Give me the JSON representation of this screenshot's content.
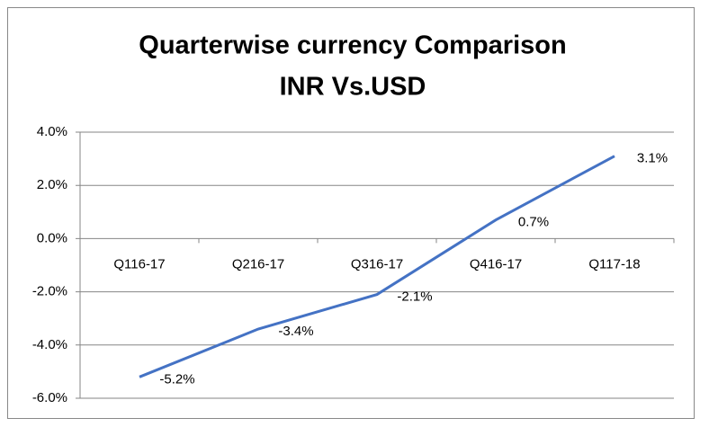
{
  "chart_data": {
    "type": "line",
    "title": [
      "Quarterwise currency Comparison",
      "INR Vs.USD"
    ],
    "categories": [
      "Q116-17",
      "Q216-17",
      "Q316-17",
      "Q416-17",
      "Q117-18"
    ],
    "series": [
      {
        "color": "#4472c4",
        "values": [
          -5.2,
          -3.4,
          -2.1,
          0.7,
          3.1
        ],
        "value_labels": [
          "-5.2%",
          "-3.4%",
          "-2.1%",
          "0.7%",
          "3.1%"
        ]
      }
    ],
    "ylim": [
      -6,
      4
    ],
    "yticks": [
      {
        "value": -6,
        "label": "-6.0%"
      },
      {
        "value": -4,
        "label": "-4.0%"
      },
      {
        "value": -2,
        "label": "-2.0%"
      },
      {
        "value": 0,
        "label": "0.0%"
      },
      {
        "value": 2,
        "label": "2.0%"
      },
      {
        "value": 4,
        "label": "4.0%"
      }
    ],
    "grid": true
  }
}
